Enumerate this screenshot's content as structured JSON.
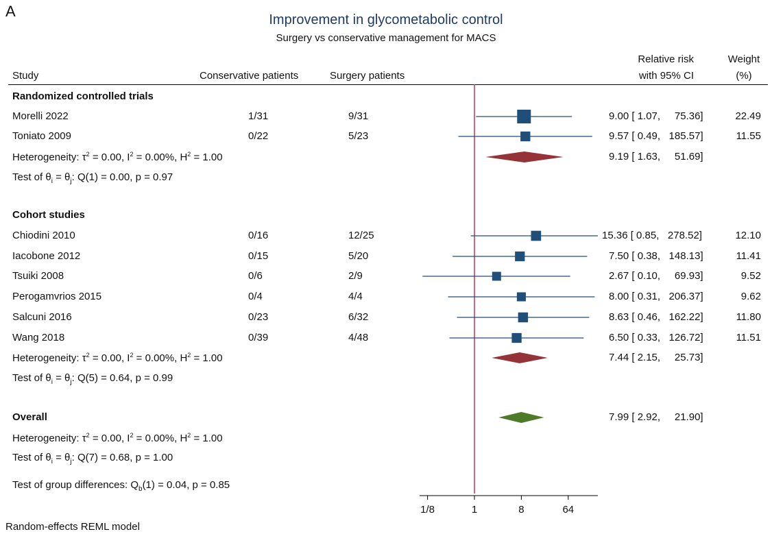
{
  "panel_letter": "A",
  "title": "Improvement in glycometabolic control",
  "subtitle": "Surgery vs conservative management for MACS",
  "headers": {
    "study": "Study",
    "conservative": "Conservative patients",
    "surgery": "Surgery patients",
    "rr_line1": "Relative risk",
    "rr_line2": "with 95% CI",
    "weight_line1": "Weight",
    "weight_line2": "(%)"
  },
  "groups": [
    {
      "name": "Randomized controlled trials",
      "heterogeneity": {
        "prefix": "Heterogeneity: τ",
        "tau2_val": " = 0.00, I",
        "i2_val": " = 0.00%, H",
        "h2_val": " = 1.00"
      },
      "test": {
        "prefix": "Test of θ",
        "mid": " = θ",
        "suffix": ": Q(1) = 0.00, p = 0.97"
      },
      "pooled": {
        "ci_text": "9.19 [ 1.63,     51.69]"
      }
    },
    {
      "name": "Cohort studies",
      "heterogeneity": {
        "prefix": "Heterogeneity: τ",
        "tau2_val": " = 0.00, I",
        "i2_val": " = 0.00%, H",
        "h2_val": " = 1.00"
      },
      "test": {
        "prefix": "Test of θ",
        "mid": " = θ",
        "suffix": ": Q(5) = 0.64, p = 0.99"
      },
      "pooled": {
        "ci_text": "7.44 [ 2.15,     25.73]"
      }
    }
  ],
  "overall": {
    "label": "Overall",
    "heterogeneity": {
      "prefix": "Heterogeneity: τ",
      "tau2_val": " = 0.00, I",
      "i2_val": " = 0.00%, H",
      "h2_val": " = 1.00"
    },
    "test": {
      "prefix": "Test of θ",
      "mid": " = θ",
      "suffix": ": Q(7) = 0.68, p = 1.00"
    },
    "ci_text": "7.99 [ 2.92,     21.90]",
    "group_diff": {
      "prefix": "Test of group differences: Q",
      "suffix": "(1) = 0.04, p = 0.85"
    }
  },
  "footer": "Random-effects REML model",
  "colors": {
    "title": "#1f3a68",
    "study_marker": "#1f4e79",
    "subgroup_diamond": "#963338",
    "overall_diamond": "#4f7a28",
    "null_line": "#c0306a"
  },
  "chart_data": {
    "type": "forest",
    "x_scale": "log2",
    "x_ticks": [
      0.125,
      1,
      8,
      64
    ],
    "x_tick_labels": [
      "1/8",
      "1",
      "8",
      "64"
    ],
    "null_value": 1,
    "studies": [
      {
        "group": 0,
        "name": "Morelli 2022",
        "conservative": "1/31",
        "surgery": "9/31",
        "rr": 9.0,
        "lo": 1.07,
        "hi": 75.36,
        "weight": 22.49,
        "ci_text": "9.00 [ 1.07,     75.36]",
        "weight_text": "22.49"
      },
      {
        "group": 0,
        "name": "Toniato 2009",
        "conservative": "0/22",
        "surgery": "5/23",
        "rr": 9.57,
        "lo": 0.49,
        "hi": 185.57,
        "weight": 11.55,
        "ci_text": "9.57 [ 0.49,   185.57]",
        "weight_text": "11.55"
      },
      {
        "group": 1,
        "name": "Chiodini 2010",
        "conservative": "0/16",
        "surgery": "12/25",
        "rr": 15.36,
        "lo": 0.85,
        "hi": 278.52,
        "weight": 12.1,
        "ci_text": "15.36 [ 0.85,   278.52]",
        "weight_text": "12.10"
      },
      {
        "group": 1,
        "name": "Iacobone 2012",
        "conservative": "0/15",
        "surgery": "5/20",
        "rr": 7.5,
        "lo": 0.38,
        "hi": 148.13,
        "weight": 11.41,
        "ci_text": "7.50 [ 0.38,   148.13]",
        "weight_text": "11.41"
      },
      {
        "group": 1,
        "name": "Tsuiki 2008",
        "conservative": "0/6",
        "surgery": "2/9",
        "rr": 2.67,
        "lo": 0.1,
        "hi": 69.93,
        "weight": 9.52,
        "ci_text": "2.67 [ 0.10,     69.93]",
        "weight_text": "9.52"
      },
      {
        "group": 1,
        "name": "Perogamvrios 2015",
        "conservative": "0/4",
        "surgery": "4/4",
        "rr": 8.0,
        "lo": 0.31,
        "hi": 206.37,
        "weight": 9.62,
        "ci_text": "8.00 [ 0.31,   206.37]",
        "weight_text": "9.62"
      },
      {
        "group": 1,
        "name": "Salcuni 2016",
        "conservative": "0/23",
        "surgery": "6/32",
        "rr": 8.63,
        "lo": 0.46,
        "hi": 162.22,
        "weight": 11.8,
        "ci_text": "8.63 [ 0.46,   162.22]",
        "weight_text": "11.80"
      },
      {
        "group": 1,
        "name": "Wang 2018",
        "conservative": "0/39",
        "surgery": "4/48",
        "rr": 6.5,
        "lo": 0.33,
        "hi": 126.72,
        "weight": 11.51,
        "ci_text": "6.50 [ 0.33,   126.72]",
        "weight_text": "11.51"
      }
    ],
    "subgroup_pooled": [
      {
        "group": 0,
        "rr": 9.19,
        "lo": 1.63,
        "hi": 51.69
      },
      {
        "group": 1,
        "rr": 7.44,
        "lo": 2.15,
        "hi": 25.73
      }
    ],
    "overall_pooled": {
      "rr": 7.99,
      "lo": 2.92,
      "hi": 21.9
    }
  }
}
